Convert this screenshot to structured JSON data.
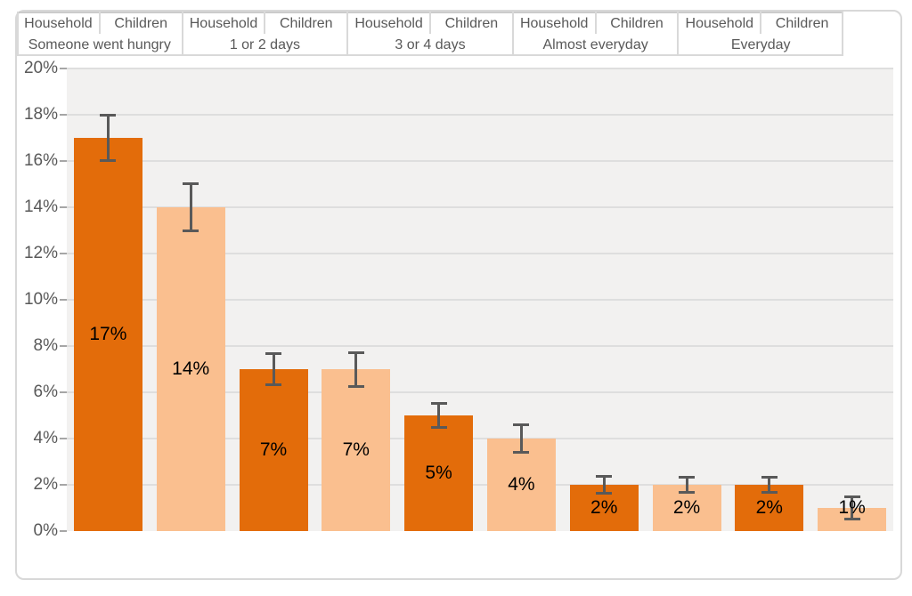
{
  "chart_data": {
    "type": "bar",
    "title": "",
    "xlabel": "",
    "ylabel": "",
    "ylim": [
      0,
      20
    ],
    "ytick_step": 2,
    "ytick_labels": [
      "0%",
      "2%",
      "4%",
      "6%",
      "8%",
      "10%",
      "12%",
      "14%",
      "16%",
      "18%",
      "20%"
    ],
    "grid": true,
    "legend_position": "none",
    "error_bars": true,
    "series_names": [
      "Household",
      "Children"
    ],
    "categories": [
      "Someone went hungry",
      "1 or 2 days",
      "3 or 4 days",
      "Almost everyday",
      "Everyday"
    ],
    "groups": [
      {
        "label": "Someone went hungry",
        "bars": [
          {
            "series": "Household",
            "value": 17,
            "data_label": "17%",
            "error_plus": 1.0,
            "error_minus": 1.0
          },
          {
            "series": "Children",
            "value": 14,
            "data_label": "14%",
            "error_plus": 1.05,
            "error_minus": 1.05
          }
        ]
      },
      {
        "label": "1 or 2 days",
        "bars": [
          {
            "series": "Household",
            "value": 7,
            "data_label": "7%",
            "error_plus": 0.7,
            "error_minus": 0.7
          },
          {
            "series": "Children",
            "value": 7,
            "data_label": "7%",
            "error_plus": 0.75,
            "error_minus": 0.75
          }
        ]
      },
      {
        "label": "3 or 4 days",
        "bars": [
          {
            "series": "Household",
            "value": 5,
            "data_label": "5%",
            "error_plus": 0.55,
            "error_minus": 0.55
          },
          {
            "series": "Children",
            "value": 4,
            "data_label": "4%",
            "error_plus": 0.6,
            "error_minus": 0.6
          }
        ]
      },
      {
        "label": "Almost everyday",
        "bars": [
          {
            "series": "Household",
            "value": 2,
            "data_label": "2%",
            "error_plus": 0.4,
            "error_minus": 0.4
          },
          {
            "series": "Children",
            "value": 2,
            "data_label": "2%",
            "error_plus": 0.35,
            "error_minus": 0.35
          }
        ]
      },
      {
        "label": "Everyday",
        "bars": [
          {
            "series": "Household",
            "value": 2,
            "data_label": "2%",
            "error_plus": 0.35,
            "error_minus": 0.35
          },
          {
            "series": "Children",
            "value": 1,
            "data_label": "1%",
            "error_plus": 0.5,
            "error_minus": 0.5
          }
        ]
      }
    ],
    "colors": {
      "household_bar": "#E36C0A",
      "children_bar": "#FABF8F",
      "plot_background": "#F2F1F0",
      "gridline": "#DEDEDE",
      "axis_text": "#595959",
      "data_label_text": "#000000",
      "error_bar": "#595959",
      "frame_border": "#D8D8D8",
      "separator_line": "#D9D9D9",
      "zero_axis_line": "#CBCBCB",
      "tick_mark": "#A6A6A6"
    }
  }
}
